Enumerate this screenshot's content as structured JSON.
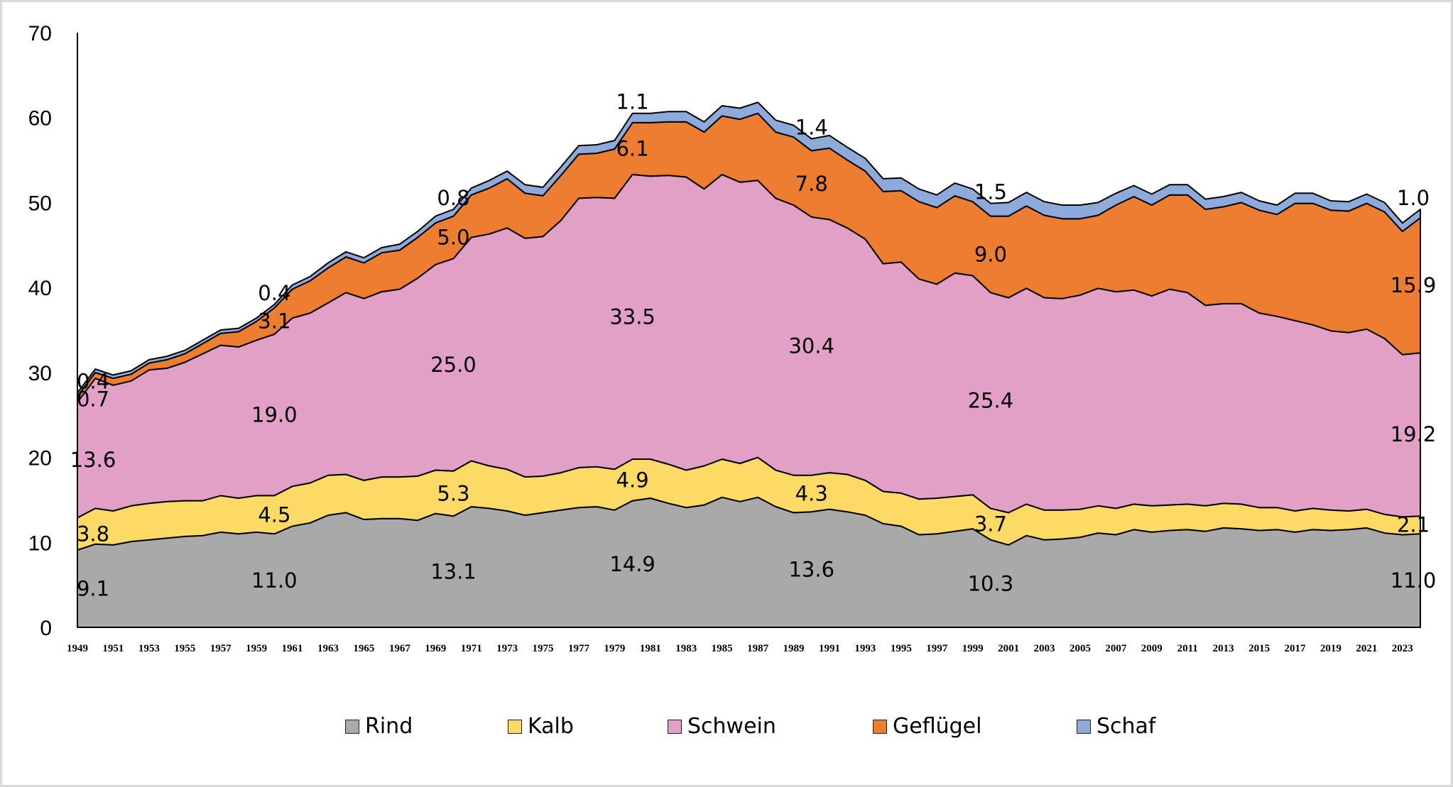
{
  "chart_data": {
    "type": "area",
    "stacked": true,
    "title": "",
    "xlabel": "",
    "ylabel": "",
    "ylim": [
      0,
      70
    ],
    "yticks": [
      0,
      10,
      20,
      30,
      40,
      50,
      60,
      70
    ],
    "x": [
      1949,
      1950,
      1951,
      1952,
      1953,
      1954,
      1955,
      1956,
      1957,
      1958,
      1959,
      1960,
      1961,
      1962,
      1963,
      1964,
      1965,
      1966,
      1967,
      1968,
      1969,
      1970,
      1971,
      1972,
      1973,
      1974,
      1975,
      1976,
      1977,
      1978,
      1979,
      1980,
      1981,
      1982,
      1983,
      1984,
      1985,
      1986,
      1987,
      1988,
      1989,
      1990,
      1991,
      1992,
      1993,
      1994,
      1995,
      1996,
      1997,
      1998,
      1999,
      2000,
      2001,
      2002,
      2003,
      2004,
      2005,
      2006,
      2007,
      2008,
      2009,
      2010,
      2011,
      2012,
      2013,
      2014,
      2015,
      2016,
      2017,
      2018,
      2019,
      2020,
      2021,
      2022,
      2023,
      2024
    ],
    "xtick_labels": [
      "1949",
      "1951",
      "1953",
      "1955",
      "1957",
      "1959",
      "1961",
      "1963",
      "1965",
      "1967",
      "1969",
      "1971",
      "1973",
      "1975",
      "1977",
      "1979",
      "1981",
      "1983",
      "1985",
      "1987",
      "1989",
      "1991",
      "1993",
      "1995",
      "1997",
      "1999",
      "2001",
      "2003",
      "2005",
      "2007",
      "2009",
      "2011",
      "2013",
      "2015",
      "2017",
      "2019",
      "2021",
      "2023"
    ],
    "legend_position": "bottom",
    "grid": false,
    "labeled_years": [
      1949,
      1960,
      1970,
      1980,
      1990,
      2000,
      2024
    ],
    "series": [
      {
        "name": "Rind",
        "color": "#a9a9a9",
        "values": [
          9.1,
          9.8,
          9.7,
          10.1,
          10.3,
          10.5,
          10.7,
          10.8,
          11.2,
          11.0,
          11.2,
          11.0,
          11.9,
          12.3,
          13.2,
          13.5,
          12.7,
          12.8,
          12.8,
          12.6,
          13.4,
          13.1,
          14.2,
          14.0,
          13.7,
          13.2,
          13.5,
          13.8,
          14.1,
          14.2,
          13.8,
          14.9,
          15.2,
          14.6,
          14.1,
          14.4,
          15.3,
          14.8,
          15.3,
          14.2,
          13.5,
          13.6,
          13.9,
          13.6,
          13.2,
          12.2,
          11.9,
          10.9,
          11.0,
          11.3,
          11.6,
          10.3,
          9.7,
          10.8,
          10.3,
          10.4,
          10.6,
          11.1,
          10.9,
          11.5,
          11.2,
          11.4,
          11.5,
          11.3,
          11.7,
          11.6,
          11.4,
          11.5,
          11.2,
          11.5,
          11.4,
          11.5,
          11.7,
          11.1,
          10.9,
          11.0
        ],
        "labels": [
          "9.1",
          "11.0",
          "13.1",
          "14.9",
          "13.6",
          "10.3",
          "11.0"
        ]
      },
      {
        "name": "Kalb",
        "color": "#fdd966",
        "values": [
          3.8,
          4.2,
          4.0,
          4.2,
          4.3,
          4.3,
          4.2,
          4.1,
          4.3,
          4.2,
          4.3,
          4.5,
          4.7,
          4.7,
          4.7,
          4.5,
          4.6,
          4.9,
          4.9,
          5.2,
          5.1,
          5.3,
          5.4,
          5.0,
          4.9,
          4.5,
          4.3,
          4.4,
          4.7,
          4.7,
          4.8,
          4.9,
          4.6,
          4.6,
          4.4,
          4.6,
          4.5,
          4.5,
          4.7,
          4.3,
          4.4,
          4.3,
          4.3,
          4.4,
          4.1,
          3.8,
          3.9,
          4.2,
          4.2,
          4.1,
          4.0,
          3.7,
          3.8,
          3.7,
          3.5,
          3.4,
          3.3,
          3.2,
          3.1,
          3.0,
          3.1,
          3.0,
          3.0,
          3.0,
          2.9,
          2.9,
          2.7,
          2.6,
          2.5,
          2.5,
          2.4,
          2.2,
          2.2,
          2.2,
          2.1,
          2.1
        ],
        "labels": [
          "3.8",
          "4.5",
          "5.3",
          "4.9",
          "4.3",
          "3.7",
          "2.1"
        ]
      },
      {
        "name": "Schwein",
        "color": "#e2a0c6",
        "values": [
          13.6,
          15.3,
          14.8,
          14.7,
          15.7,
          15.7,
          16.3,
          17.3,
          17.7,
          17.8,
          18.3,
          19.0,
          19.8,
          20.0,
          20.3,
          21.4,
          21.4,
          21.8,
          22.1,
          23.3,
          24.2,
          25.0,
          26.3,
          27.3,
          28.4,
          28.1,
          28.2,
          29.7,
          31.7,
          31.7,
          31.9,
          33.5,
          33.3,
          34.0,
          34.5,
          32.6,
          33.5,
          33.1,
          32.6,
          32.0,
          31.8,
          30.4,
          29.8,
          29.0,
          28.4,
          26.8,
          27.2,
          25.9,
          25.2,
          26.3,
          25.8,
          25.4,
          25.3,
          25.4,
          25.0,
          24.9,
          25.2,
          25.6,
          25.5,
          25.2,
          24.7,
          25.4,
          24.9,
          23.6,
          23.5,
          23.6,
          22.9,
          22.5,
          22.4,
          21.6,
          21.1,
          21.0,
          21.2,
          20.7,
          19.1,
          19.2
        ],
        "labels": [
          "13.6",
          "19.0",
          "25.0",
          "33.5",
          "30.4",
          "25.4",
          "19.2"
        ]
      },
      {
        "name": "Geflügel",
        "color": "#ed7d31",
        "values": [
          0.7,
          0.7,
          0.8,
          0.8,
          0.8,
          1.0,
          1.0,
          1.2,
          1.4,
          1.8,
          2.2,
          3.1,
          3.4,
          3.8,
          4.1,
          4.2,
          4.2,
          4.6,
          4.6,
          4.8,
          4.9,
          5.0,
          5.0,
          5.4,
          5.8,
          5.3,
          4.8,
          5.3,
          5.2,
          5.2,
          5.8,
          6.1,
          6.3,
          6.3,
          6.5,
          6.7,
          6.9,
          7.4,
          7.9,
          7.8,
          8.0,
          7.8,
          8.4,
          8.0,
          8.0,
          8.5,
          8.4,
          9.1,
          9.0,
          9.1,
          8.7,
          9.0,
          9.6,
          9.7,
          9.7,
          9.4,
          9.0,
          8.6,
          10.2,
          11.0,
          10.7,
          11.1,
          11.5,
          11.3,
          11.4,
          11.9,
          12.1,
          12.0,
          13.8,
          14.3,
          14.2,
          14.3,
          14.8,
          14.9,
          14.5,
          15.9
        ],
        "labels": [
          "0.7",
          "3.1",
          "5.0",
          "6.1",
          "7.8",
          "9.0",
          "15.9"
        ]
      },
      {
        "name": "Schaf",
        "color": "#8eaadb",
        "values": [
          0.4,
          0.4,
          0.4,
          0.4,
          0.4,
          0.4,
          0.4,
          0.4,
          0.4,
          0.4,
          0.4,
          0.4,
          0.5,
          0.5,
          0.6,
          0.6,
          0.6,
          0.6,
          0.7,
          0.7,
          0.8,
          0.8,
          0.8,
          0.9,
          0.9,
          1.0,
          1.0,
          1.0,
          1.0,
          1.0,
          1.0,
          1.1,
          1.1,
          1.2,
          1.2,
          1.2,
          1.2,
          1.3,
          1.3,
          1.4,
          1.4,
          1.4,
          1.5,
          1.5,
          1.5,
          1.5,
          1.5,
          1.5,
          1.5,
          1.5,
          1.5,
          1.5,
          1.6,
          1.6,
          1.6,
          1.6,
          1.6,
          1.5,
          1.4,
          1.3,
          1.3,
          1.2,
          1.2,
          1.2,
          1.2,
          1.2,
          1.1,
          1.1,
          1.2,
          1.2,
          1.1,
          1.1,
          1.1,
          1.1,
          1.0,
          1.0
        ],
        "labels": [
          "0.4",
          "0.4",
          "0.8",
          "1.1",
          "1.4",
          "1.5",
          "1.0"
        ]
      }
    ]
  }
}
